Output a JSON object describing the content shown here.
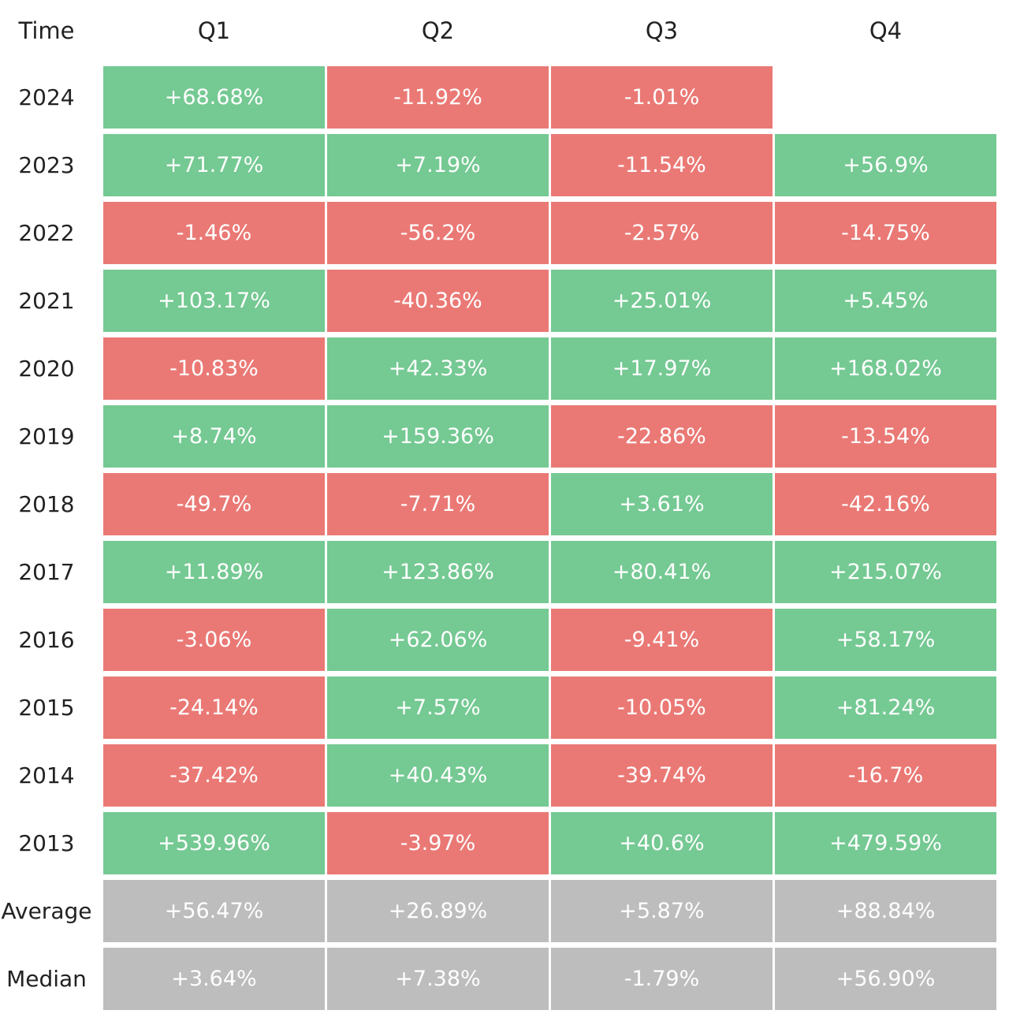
{
  "chart_data": {
    "type": "table",
    "columns": [
      "Time",
      "Q1",
      "Q2",
      "Q3",
      "Q4"
    ],
    "rows": [
      {
        "label": "2024",
        "kind": "year",
        "values": [
          "+68.68%",
          "-11.92%",
          "-1.01%",
          ""
        ]
      },
      {
        "label": "2023",
        "kind": "year",
        "values": [
          "+71.77%",
          "+7.19%",
          "-11.54%",
          "+56.9%"
        ]
      },
      {
        "label": "2022",
        "kind": "year",
        "values": [
          "-1.46%",
          "-56.2%",
          "-2.57%",
          "-14.75%"
        ]
      },
      {
        "label": "2021",
        "kind": "year",
        "values": [
          "+103.17%",
          "-40.36%",
          "+25.01%",
          "+5.45%"
        ]
      },
      {
        "label": "2020",
        "kind": "year",
        "values": [
          "-10.83%",
          "+42.33%",
          "+17.97%",
          "+168.02%"
        ]
      },
      {
        "label": "2019",
        "kind": "year",
        "values": [
          "+8.74%",
          "+159.36%",
          "-22.86%",
          "-13.54%"
        ]
      },
      {
        "label": "2018",
        "kind": "year",
        "values": [
          "-49.7%",
          "-7.71%",
          "+3.61%",
          "-42.16%"
        ]
      },
      {
        "label": "2017",
        "kind": "year",
        "values": [
          "+11.89%",
          "+123.86%",
          "+80.41%",
          "+215.07%"
        ]
      },
      {
        "label": "2016",
        "kind": "year",
        "values": [
          "-3.06%",
          "+62.06%",
          "-9.41%",
          "+58.17%"
        ]
      },
      {
        "label": "2015",
        "kind": "year",
        "values": [
          "-24.14%",
          "+7.57%",
          "-10.05%",
          "+81.24%"
        ]
      },
      {
        "label": "2014",
        "kind": "year",
        "values": [
          "-37.42%",
          "+40.43%",
          "-39.74%",
          "-16.7%"
        ]
      },
      {
        "label": "2013",
        "kind": "year",
        "values": [
          "+539.96%",
          "-3.97%",
          "+40.6%",
          "+479.59%"
        ]
      },
      {
        "label": "Average",
        "kind": "summary",
        "values": [
          "+56.47%",
          "+26.89%",
          "+5.87%",
          "+88.84%"
        ]
      },
      {
        "label": "Median",
        "kind": "summary",
        "values": [
          "+3.64%",
          "+7.38%",
          "-1.79%",
          "+56.90%"
        ]
      }
    ]
  },
  "colors": {
    "positive": "#75c993",
    "negative": "#ea7975",
    "summary": "#bdbdbd",
    "text_light": "#ffffff",
    "text_dark": "#222222",
    "background": "#ffffff"
  }
}
